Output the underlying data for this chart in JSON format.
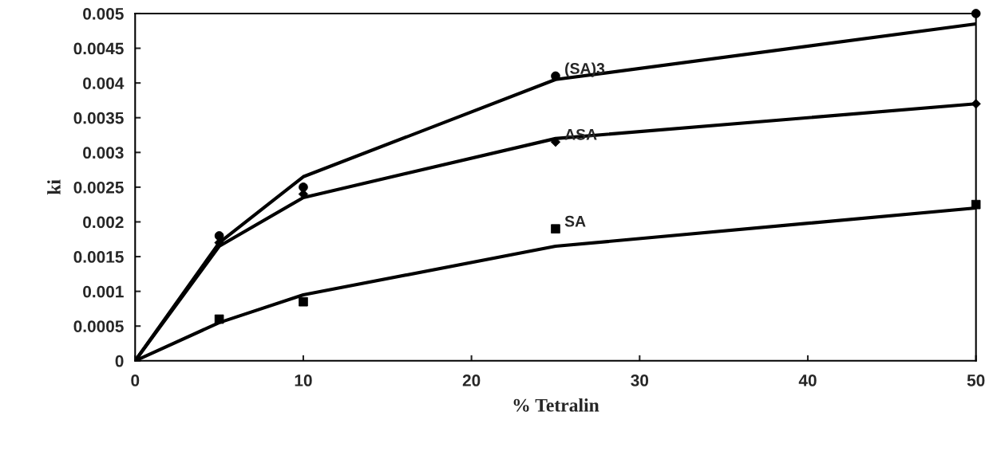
{
  "chart_data": {
    "type": "scatter",
    "xlabel": "% Tetralin",
    "ylabel": "ki",
    "x": [
      0,
      5,
      10,
      25,
      50
    ],
    "series": [
      {
        "name": "(SA)3",
        "marker": "circle",
        "color": "#000000",
        "x": [
          5,
          10,
          25,
          50
        ],
        "values": [
          0.0018,
          0.0025,
          0.0041,
          0.005
        ]
      },
      {
        "name": "ASA",
        "marker": "diamond",
        "color": "#000000",
        "x": [
          5,
          10,
          25,
          50
        ],
        "values": [
          0.0017,
          0.0024,
          0.00315,
          0.0037
        ]
      },
      {
        "name": "SA",
        "marker": "square",
        "color": "#000000",
        "x": [
          5,
          10,
          25,
          50
        ],
        "values": [
          0.0006,
          0.00085,
          0.0019,
          0.00225
        ]
      },
      {
        "type": "line",
        "color": "#000000",
        "values": [
          0,
          0.0017,
          0.00265,
          0.00405,
          0.00485
        ]
      },
      {
        "type": "line",
        "color": "#000000",
        "values": [
          0,
          0.00165,
          0.00235,
          0.0032,
          0.0037
        ]
      },
      {
        "type": "line",
        "color": "#000000",
        "values": [
          0,
          0.00055,
          0.00095,
          0.00165,
          0.0022
        ]
      }
    ],
    "xlim": [
      0,
      50
    ],
    "xticks": [
      0,
      10,
      20,
      30,
      40,
      50
    ],
    "ylim": [
      0,
      0.005
    ],
    "yticks": [
      0,
      0.0005,
      0.001,
      0.0015,
      0.002,
      0.0025,
      0.003,
      0.0035,
      0.004,
      0.0045,
      0.005
    ],
    "grid": false,
    "legend": false
  }
}
